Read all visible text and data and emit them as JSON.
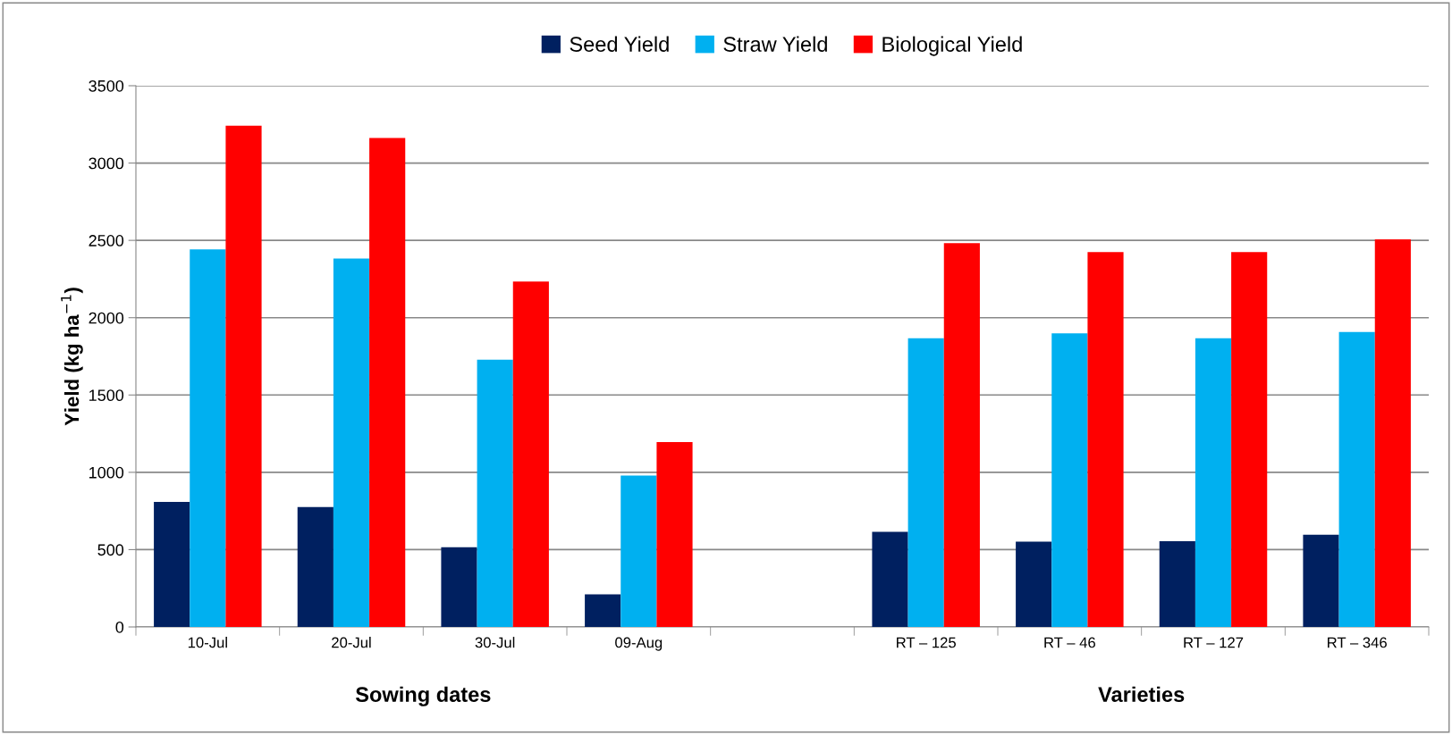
{
  "chart_data": {
    "type": "bar",
    "ylabel": "Yield (kg ha$^{−1}$)",
    "categories": [
      "10-Jul",
      "20-Jul",
      "30-Jul",
      "09-Aug",
      null,
      "RT – 125",
      "RT – 46",
      "RT – 127",
      "RT – 346"
    ],
    "series": [
      {
        "name": "Seed Yield",
        "color": "#002060",
        "values": [
          808,
          776,
          515,
          211,
          null,
          615,
          552,
          554,
          597
        ]
      },
      {
        "name": "Straw Yield",
        "color": "#00b0f0",
        "values": [
          2441,
          2383,
          1729,
          979,
          null,
          1867,
          1899,
          1867,
          1907
        ]
      },
      {
        "name": "Biological Yield",
        "color": "#ff0000",
        "values": [
          3241,
          3162,
          2233,
          1196,
          null,
          2482,
          2424,
          2424,
          2506
        ]
      }
    ],
    "annotations": [
      "Sowing dates",
      "Varieties"
    ],
    "ylim": [
      0,
      3500
    ],
    "yticks": [
      0,
      500,
      1000,
      1500,
      2000,
      2500,
      3000,
      3500
    ],
    "grid": "y",
    "legend": "top"
  }
}
